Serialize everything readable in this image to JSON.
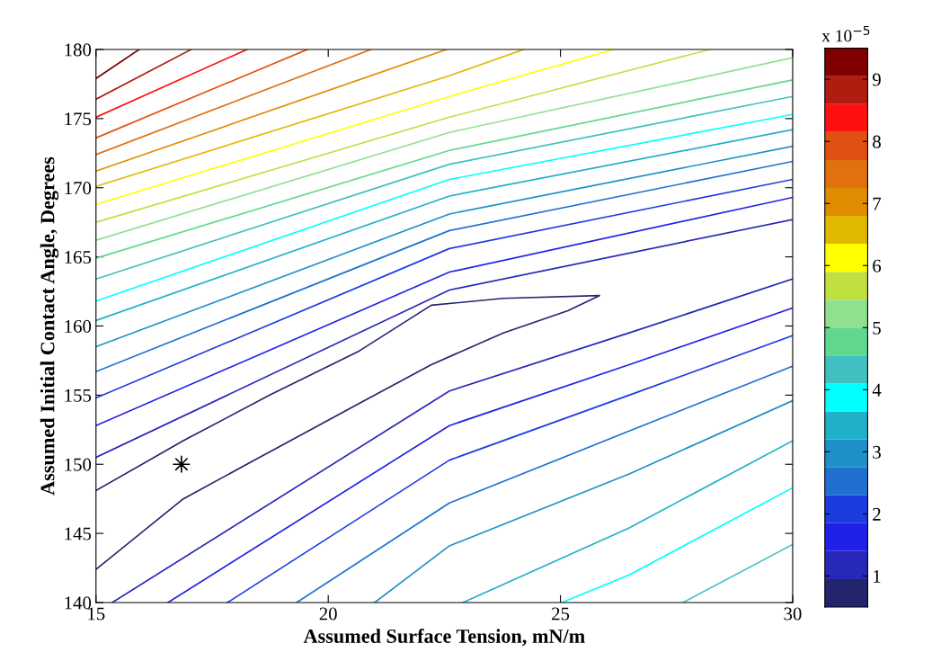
{
  "chart_data": {
    "type": "line",
    "xlabel": "Assumed Surface Tension, mN/m",
    "ylabel": "Assumed Initial Contact Angle, Degrees",
    "clabel": "x 10$^{−5}$",
    "xlim": [
      15,
      30
    ],
    "ylim": [
      140,
      180
    ],
    "xticks": [
      15,
      20,
      25,
      30
    ],
    "yticks": [
      140,
      145,
      150,
      155,
      160,
      165,
      170,
      175,
      180
    ],
    "clim": [
      0.5,
      9.5
    ],
    "cticks": [
      1,
      2,
      3,
      4,
      5,
      6,
      7,
      8,
      9
    ],
    "marker": "none",
    "line_style": "solid",
    "series": [
      {
        "color": "#24246e",
        "x": [
          15,
          16.88,
          18.74,
          20.67,
          22.22,
          23.77,
          25.84,
          25.16,
          23.77,
          22.22,
          20.67,
          18.74,
          16.88,
          15
        ],
        "values": [
          148.1,
          151.7,
          155.0,
          158.2,
          161.5,
          162.0,
          162.2,
          161.1,
          159.5,
          157.2,
          154.4,
          150.9,
          147.5,
          142.4
        ]
      },
      {
        "color": "#2828b8",
        "x": [
          15,
          22.61,
          30
        ],
        "values": [
          150.5,
          162.6,
          167.7
        ]
      },
      {
        "color": "#2828b8",
        "x": [
          15.35,
          22.61,
          26.48,
          30
        ],
        "values": [
          140,
          155.3,
          159.5,
          163.4
        ]
      },
      {
        "color": "#2020e8",
        "x": [
          15,
          22.61,
          30
        ],
        "values": [
          152.8,
          163.9,
          169.3
        ]
      },
      {
        "color": "#2020e8",
        "x": [
          16.55,
          22.61,
          26.48,
          30
        ],
        "values": [
          140,
          152.8,
          157.2,
          161.3
        ]
      },
      {
        "color": "#1c3ce0",
        "x": [
          15,
          22.61,
          30
        ],
        "values": [
          154.8,
          165.6,
          170.6
        ]
      },
      {
        "color": "#1c3ce0",
        "x": [
          17.83,
          22.61,
          26.48,
          30
        ],
        "values": [
          140,
          150.3,
          155.0,
          159.3
        ]
      },
      {
        "color": "#2070d0",
        "x": [
          15,
          22.61,
          30
        ],
        "values": [
          156.7,
          166.9,
          171.9
        ]
      },
      {
        "color": "#2070d0",
        "x": [
          19.32,
          22.61,
          26.48,
          30
        ],
        "values": [
          140,
          147.2,
          152.4,
          157.1
        ]
      },
      {
        "color": "#2090c8",
        "x": [
          15,
          22.61,
          30
        ],
        "values": [
          158.5,
          168.1,
          173.0
        ]
      },
      {
        "color": "#2090c8",
        "x": [
          21.0,
          22.61,
          26.48,
          30
        ],
        "values": [
          140,
          144.1,
          149.3,
          154.6
        ]
      },
      {
        "color": "#20b0c8",
        "x": [
          15,
          22.61,
          30
        ],
        "values": [
          160.4,
          169.4,
          174.2
        ]
      },
      {
        "color": "#20b0c8",
        "x": [
          22.9,
          26.48,
          30
        ],
        "values": [
          140,
          145.4,
          151.7
        ]
      },
      {
        "color": "#00ffff",
        "x": [
          15,
          22.61,
          30
        ],
        "values": [
          161.8,
          170.6,
          175.3
        ]
      },
      {
        "color": "#00ffff",
        "x": [
          25.03,
          26.48,
          30
        ],
        "values": [
          140,
          142.0,
          148.3
        ]
      },
      {
        "color": "#40c0c0",
        "x": [
          15,
          22.61,
          30
        ],
        "values": [
          163.4,
          171.7,
          176.6
        ]
      },
      {
        "color": "#40c0c0",
        "x": [
          27.64,
          30
        ],
        "values": [
          140,
          144.2
        ]
      },
      {
        "color": "#60d890",
        "x": [
          15,
          22.61,
          30
        ],
        "values": [
          164.9,
          172.7,
          177.8
        ]
      },
      {
        "color": "#90e090",
        "x": [
          15,
          22.61,
          30
        ],
        "values": [
          166.2,
          174.0,
          179.4
        ]
      },
      {
        "color": "#c0e040",
        "x": [
          15,
          22.61,
          28.22
        ],
        "values": [
          167.5,
          175.1,
          180
        ]
      },
      {
        "color": "#ffff00",
        "x": [
          15,
          22.61,
          26.15
        ],
        "values": [
          168.8,
          176.6,
          180
        ]
      },
      {
        "color": "#e0b800",
        "x": [
          15,
          22.61,
          24.21
        ],
        "values": [
          170.1,
          178.1,
          180
        ]
      },
      {
        "color": "#e08c00",
        "x": [
          15,
          22.55
        ],
        "values": [
          171.2,
          180
        ]
      },
      {
        "color": "#e07010",
        "x": [
          15,
          20.92
        ],
        "values": [
          172.4,
          180
        ]
      },
      {
        "color": "#e05010",
        "x": [
          15,
          19.55
        ],
        "values": [
          173.6,
          180
        ]
      },
      {
        "color": "#ff1010",
        "x": [
          15,
          18.25
        ],
        "values": [
          175.1,
          180
        ]
      },
      {
        "color": "#b01c10",
        "x": [
          15,
          17.05
        ],
        "values": [
          176.4,
          180
        ]
      },
      {
        "color": "#800000",
        "x": [
          15,
          15.93
        ],
        "values": [
          177.9,
          180
        ]
      },
      {
        "type": "scatter",
        "color": "#000000",
        "marker": "star",
        "x": [
          16.84
        ],
        "values": [
          150.0
        ]
      }
    ]
  }
}
